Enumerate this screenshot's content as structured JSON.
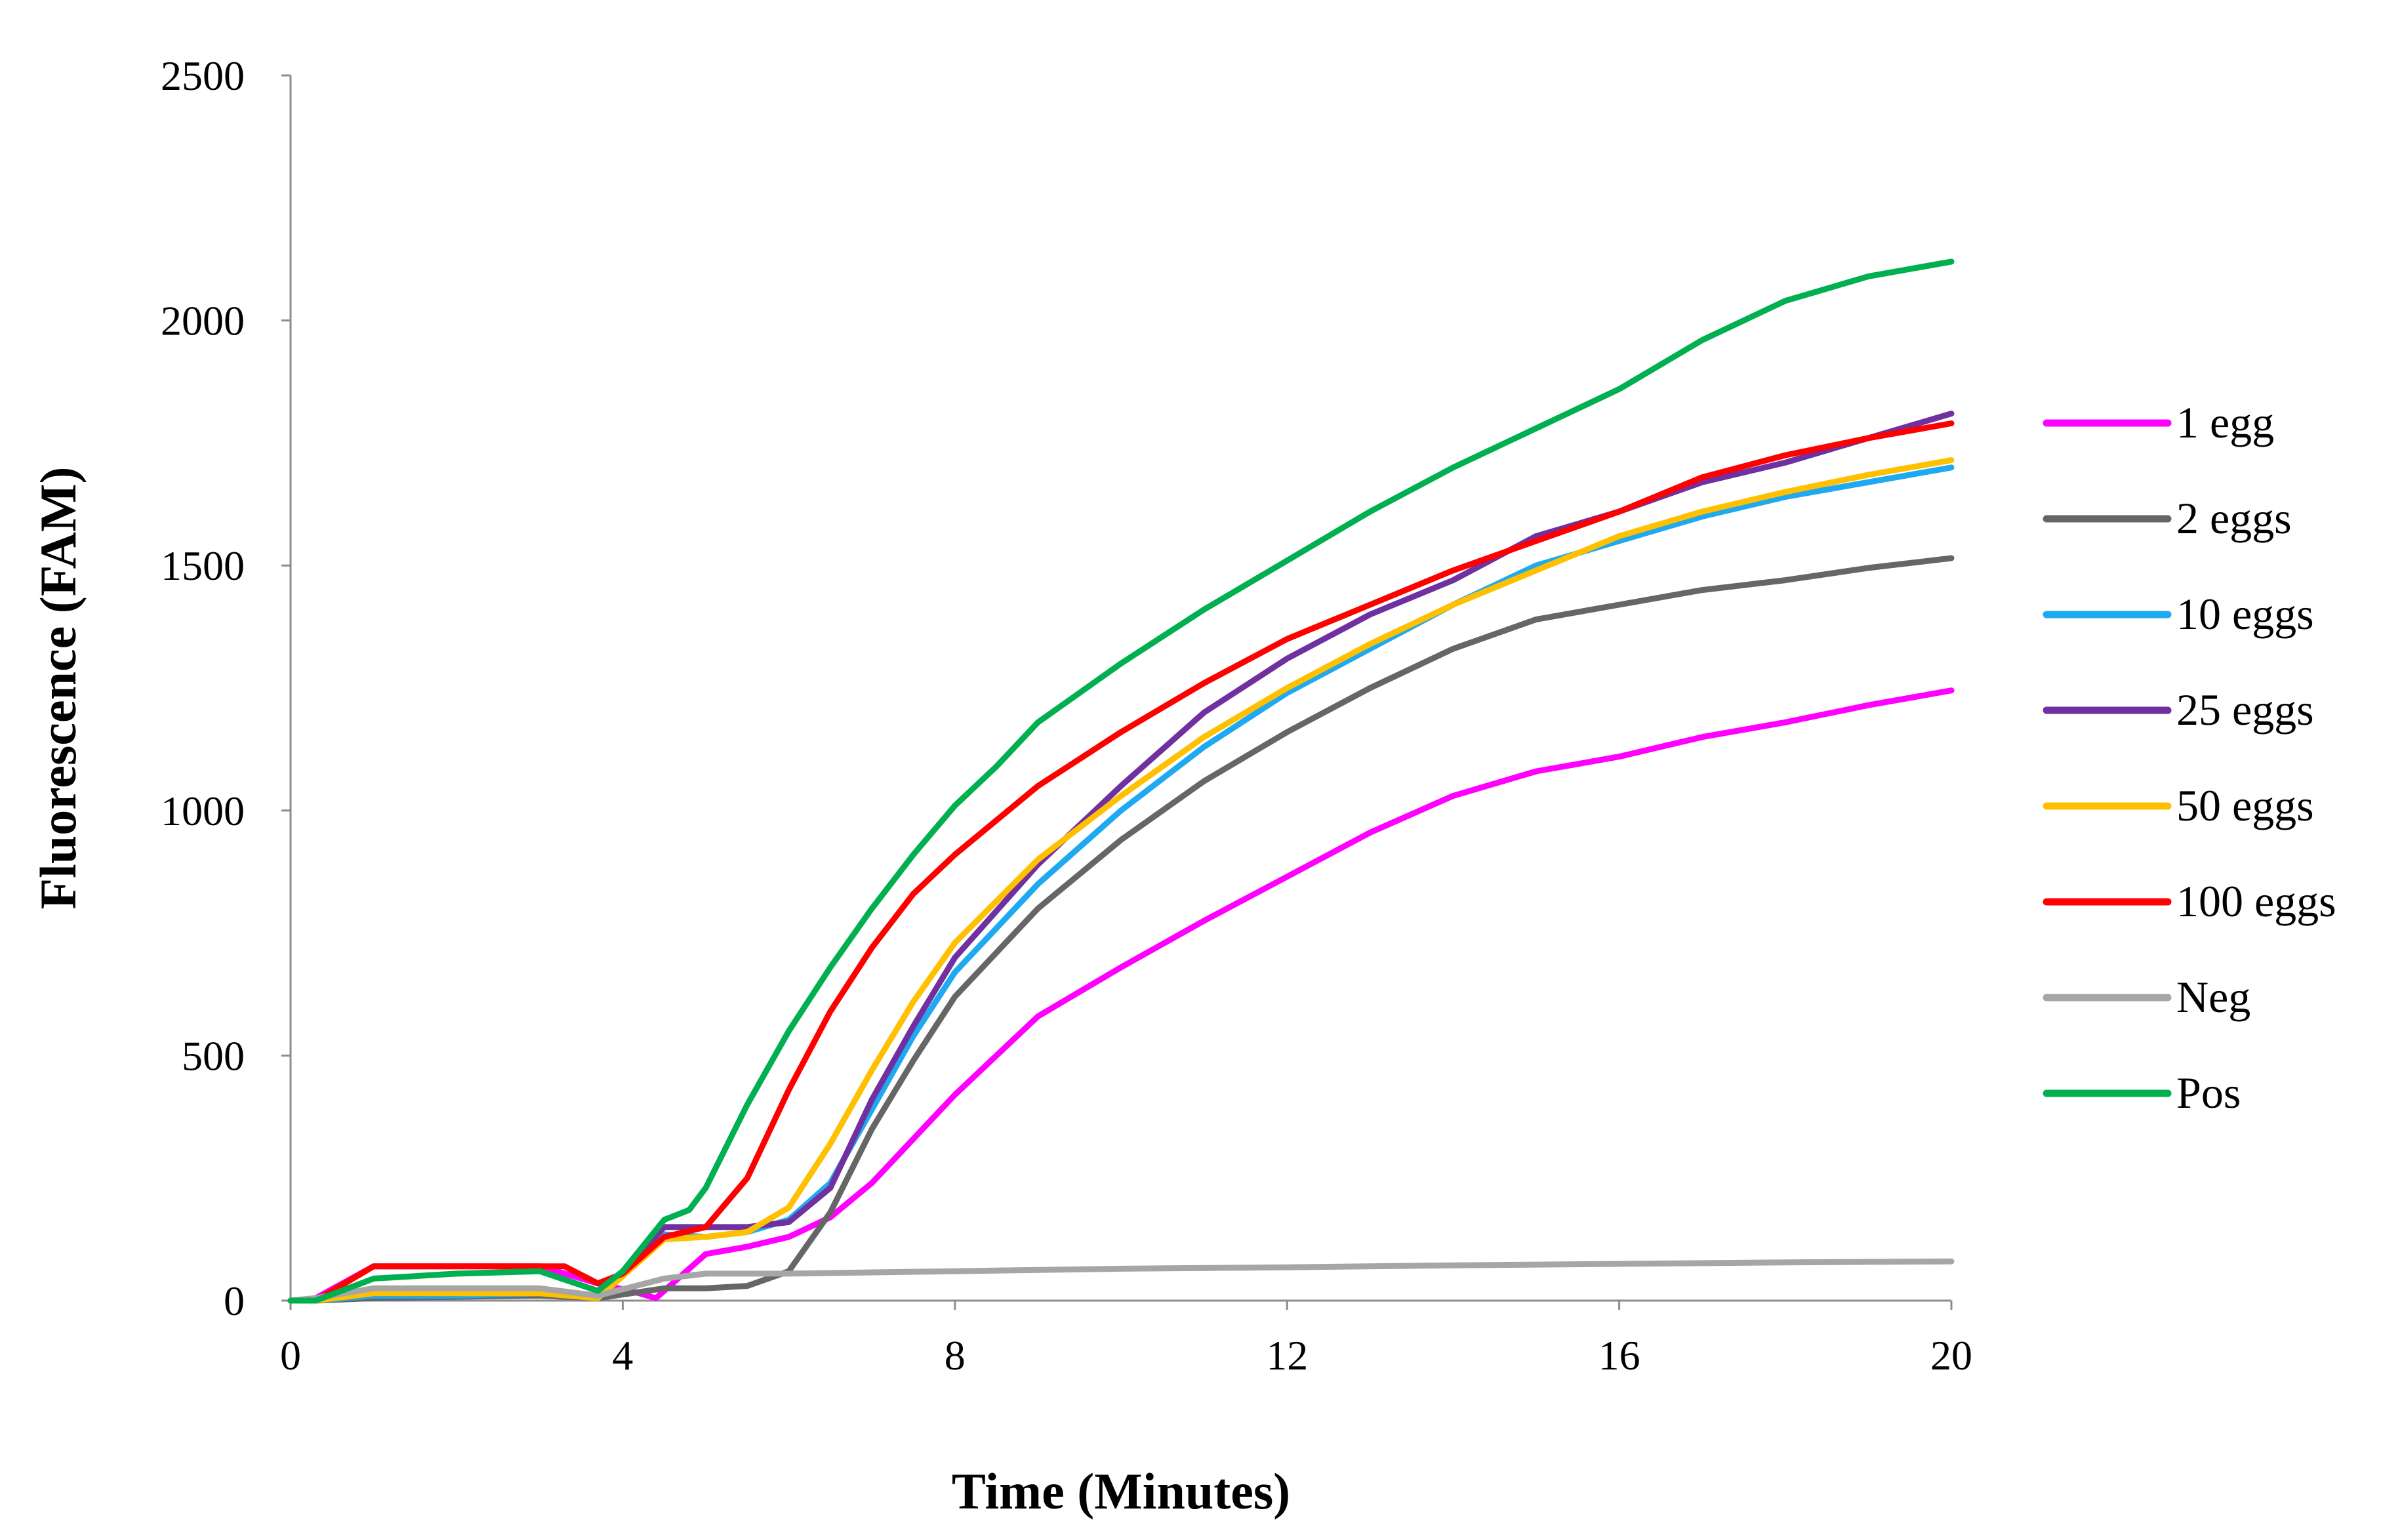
{
  "chart_data": {
    "type": "line",
    "title": "",
    "xlabel": "Time (Minutes)",
    "ylabel": "Fluorescence (FAM)",
    "xlim": [
      0,
      20
    ],
    "ylim": [
      0,
      2500
    ],
    "xticks": [
      0,
      4,
      8,
      12,
      16,
      20
    ],
    "yticks": [
      0,
      500,
      1000,
      1500,
      2000,
      2500
    ],
    "grid": false,
    "legend_position": "right",
    "series": [
      {
        "name": "1 egg",
        "color": "#ff00ff",
        "x": [
          0,
          0.3,
          1,
          2,
          3,
          3.7,
          4.2,
          4.4,
          5,
          5.5,
          6,
          6.5,
          7,
          7.5,
          8,
          9,
          10,
          11,
          12,
          13,
          14,
          15,
          16,
          17,
          18,
          19,
          20
        ],
        "y": [
          0,
          5,
          70,
          70,
          70,
          35,
          15,
          5,
          95,
          110,
          130,
          170,
          240,
          330,
          420,
          580,
          680,
          775,
          865,
          955,
          1030,
          1080,
          1110,
          1150,
          1180,
          1215,
          1245
        ]
      },
      {
        "name": "2 eggs",
        "color": "#666666",
        "x": [
          0,
          0.3,
          1,
          2,
          3,
          3.7,
          4.5,
          5,
          5.5,
          6,
          6.5,
          7,
          7.5,
          8,
          9,
          10,
          11,
          12,
          13,
          14,
          15,
          16,
          17,
          18,
          19,
          20
        ],
        "y": [
          0,
          0,
          5,
          8,
          10,
          5,
          25,
          25,
          30,
          60,
          180,
          350,
          490,
          620,
          800,
          940,
          1060,
          1160,
          1250,
          1330,
          1390,
          1420,
          1450,
          1470,
          1495,
          1515
        ]
      },
      {
        "name": "10 eggs",
        "color": "#1ea9f0",
        "x": [
          0,
          0.3,
          1,
          2,
          3,
          3.7,
          4.5,
          5,
          5.5,
          6,
          6.5,
          7,
          7.5,
          8,
          9,
          10,
          11,
          12,
          13,
          14,
          15,
          16,
          17,
          18,
          19,
          20
        ],
        "y": [
          0,
          0,
          10,
          10,
          15,
          5,
          135,
          130,
          140,
          165,
          240,
          390,
          540,
          670,
          850,
          1000,
          1130,
          1240,
          1330,
          1420,
          1500,
          1550,
          1600,
          1640,
          1670,
          1700
        ]
      },
      {
        "name": "25 eggs",
        "color": "#7030a0",
        "x": [
          0,
          0.3,
          1,
          2,
          3,
          3.7,
          4.5,
          5,
          5.5,
          6,
          6.5,
          7,
          7.5,
          8,
          9,
          10,
          11,
          12,
          13,
          14,
          15,
          16,
          17,
          18,
          19,
          20
        ],
        "y": [
          0,
          0,
          15,
          15,
          20,
          5,
          150,
          150,
          150,
          160,
          230,
          410,
          560,
          700,
          890,
          1050,
          1200,
          1310,
          1400,
          1470,
          1560,
          1610,
          1670,
          1710,
          1760,
          1810
        ]
      },
      {
        "name": "50 eggs",
        "color": "#ffc000",
        "x": [
          0,
          0.3,
          1,
          2,
          3,
          3.7,
          4.5,
          5,
          5.5,
          6,
          6.5,
          7,
          7.5,
          8,
          9,
          10,
          11,
          12,
          13,
          14,
          15,
          16,
          17,
          18,
          19,
          20
        ],
        "y": [
          0,
          0,
          15,
          15,
          15,
          5,
          125,
          130,
          140,
          190,
          320,
          470,
          610,
          730,
          900,
          1030,
          1150,
          1250,
          1340,
          1420,
          1490,
          1560,
          1610,
          1650,
          1685,
          1715
        ]
      },
      {
        "name": "100 eggs",
        "color": "#ff0000",
        "x": [
          0,
          0.3,
          1,
          2,
          3,
          3.3,
          3.7,
          4,
          4.5,
          5,
          5.5,
          6,
          6.5,
          7,
          7.5,
          8,
          9,
          10,
          11,
          12,
          13,
          14,
          15,
          16,
          17,
          18,
          19,
          20
        ],
        "y": [
          0,
          0,
          70,
          70,
          70,
          70,
          35,
          55,
          130,
          150,
          250,
          430,
          590,
          720,
          830,
          910,
          1050,
          1160,
          1260,
          1350,
          1420,
          1490,
          1550,
          1610,
          1680,
          1725,
          1760,
          1790
        ]
      },
      {
        "name": "Neg",
        "color": "#a6a6a6",
        "x": [
          0,
          0.3,
          1,
          2,
          3,
          3.7,
          4.5,
          5,
          6,
          8,
          10,
          12,
          14,
          16,
          18,
          20
        ],
        "y": [
          0,
          5,
          25,
          25,
          25,
          10,
          45,
          55,
          55,
          60,
          65,
          68,
          72,
          75,
          78,
          80
        ]
      },
      {
        "name": "Pos",
        "color": "#00b050",
        "x": [
          0,
          0.3,
          1,
          2,
          3,
          3.7,
          4,
          4.5,
          4.8,
          5,
          5.5,
          6,
          6.5,
          7,
          7.5,
          8,
          8.5,
          9,
          9.5,
          10,
          11,
          12,
          13,
          14,
          15,
          16,
          17,
          18,
          19,
          20
        ],
        "y": [
          0,
          0,
          45,
          55,
          60,
          20,
          60,
          165,
          185,
          230,
          400,
          550,
          680,
          800,
          910,
          1010,
          1090,
          1180,
          1240,
          1300,
          1410,
          1510,
          1610,
          1700,
          1780,
          1860,
          1960,
          2040,
          2090,
          2120
        ]
      }
    ]
  }
}
